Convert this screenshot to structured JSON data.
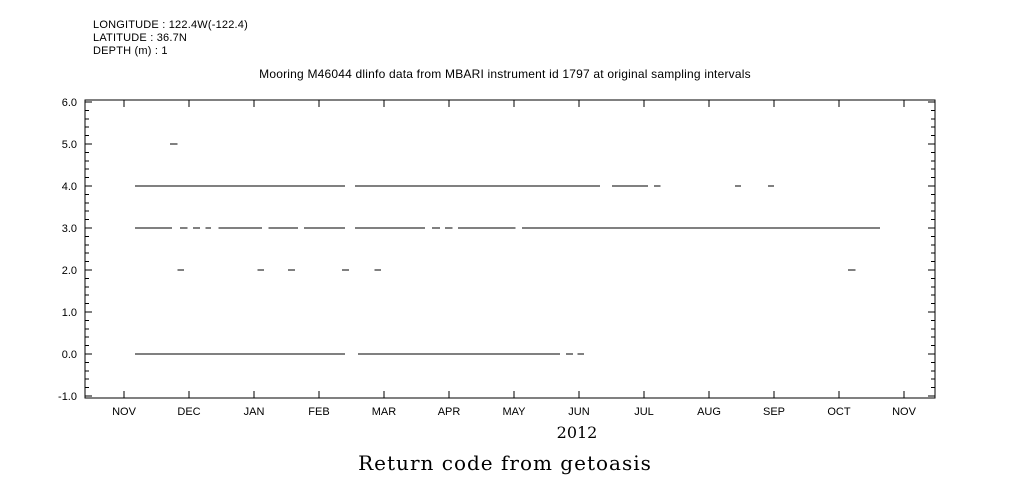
{
  "chart_data": {
    "type": "line",
    "subtype": "horizontal-segments",
    "title": "Mooring M46044 dlinfo data from MBARI instrument id 1797 at original sampling intervals",
    "header_lines": [
      "LONGITUDE : 122.4W(-122.4)",
      "LATITUDE : 36.7N",
      "DEPTH (m) : 1"
    ],
    "caption": "Return code from getoasis",
    "year_label": "2012",
    "xlabel": "",
    "ylabel": "",
    "x_tick_labels": [
      "NOV",
      "DEC",
      "JAN",
      "FEB",
      "MAR",
      "APR",
      "MAY",
      "JUN",
      "JUL",
      "AUG",
      "SEP",
      "OCT",
      "NOV"
    ],
    "x_frame_months": [
      -0.6,
      12.48
    ],
    "ylim": [
      -1.0,
      6.0
    ],
    "y_ticks": [
      -1.0,
      0.0,
      1.0,
      2.0,
      3.0,
      4.0,
      5.0,
      6.0
    ],
    "y_tick_labels": [
      "-1.0",
      "0.0",
      "1.0",
      "2.0",
      "3.0",
      "4.0",
      "5.0",
      "6.0"
    ],
    "grid": false,
    "legend": "none",
    "color": "#000000",
    "segments": [
      {
        "y": 5.0,
        "spans": [
          [
            0.71,
            0.82
          ]
        ]
      },
      {
        "y": 4.0,
        "spans": [
          [
            0.17,
            3.4
          ],
          [
            3.55,
            7.32
          ],
          [
            7.51,
            8.06
          ],
          [
            8.15,
            8.25
          ],
          [
            9.4,
            9.49
          ],
          [
            9.91,
            10.0
          ]
        ]
      },
      {
        "y": 3.0,
        "spans": [
          [
            0.17,
            0.74
          ],
          [
            0.86,
            0.98
          ],
          [
            1.06,
            1.17
          ],
          [
            1.25,
            1.34
          ],
          [
            1.45,
            2.12
          ],
          [
            2.22,
            2.68
          ],
          [
            2.77,
            3.4
          ],
          [
            3.55,
            4.63
          ],
          [
            4.74,
            4.86
          ],
          [
            4.94,
            5.05
          ],
          [
            5.14,
            6.02
          ],
          [
            6.12,
            11.63
          ]
        ]
      },
      {
        "y": 2.0,
        "spans": [
          [
            0.82,
            0.92
          ],
          [
            2.05,
            2.15
          ],
          [
            2.52,
            2.63
          ],
          [
            3.35,
            3.46
          ],
          [
            3.85,
            3.95
          ],
          [
            11.14,
            11.25
          ]
        ]
      },
      {
        "y": 0.0,
        "spans": [
          [
            0.17,
            3.4
          ],
          [
            3.6,
            6.71
          ],
          [
            6.8,
            6.91
          ],
          [
            6.98,
            7.08
          ]
        ]
      }
    ]
  }
}
